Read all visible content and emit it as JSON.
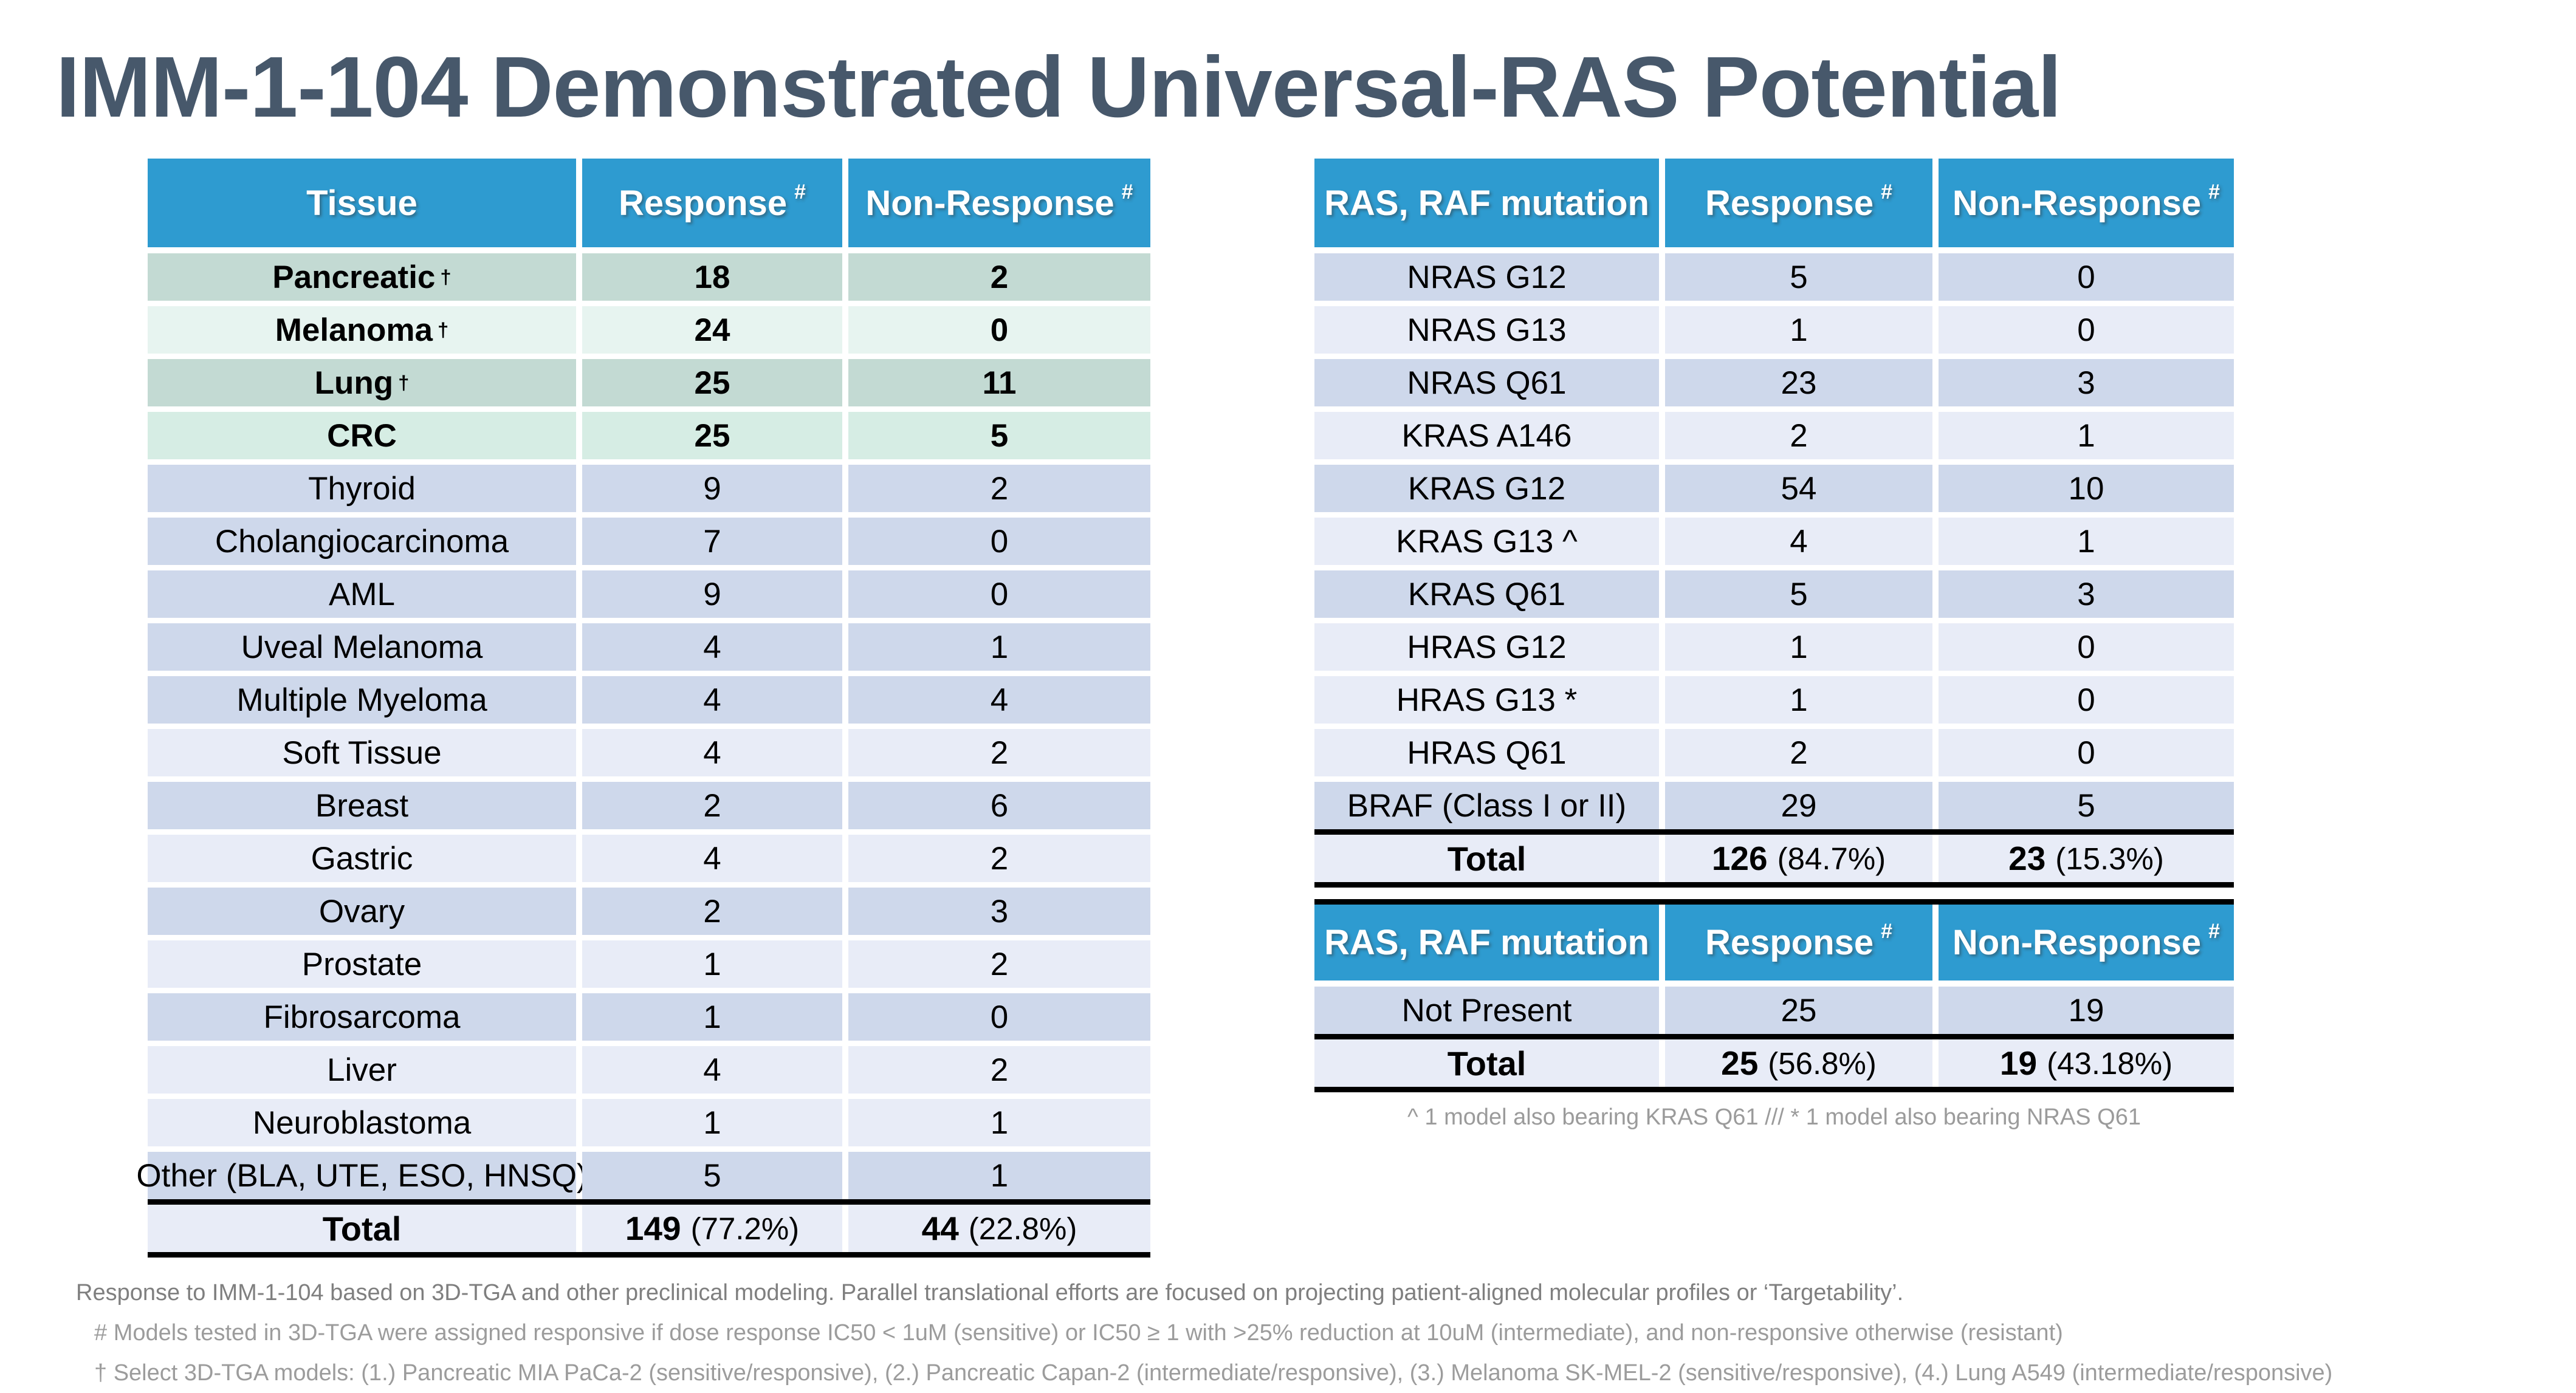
{
  "title": "IMM-1-104 Demonstrated Universal-RAS Potential",
  "colors": {
    "header_blue": "#2E9BD0",
    "title_color": "#47586B",
    "tone_green_dark": "#C3DAD3",
    "tone_green_light": "#E7F4F0",
    "tone_mint": "#D6EDE4",
    "tone_peri": "#CED8EB",
    "tone_light": "#E8ECF7",
    "footnote_gray": "#9B9B9B",
    "note_primary": "#7F7F7F",
    "note_secondary": "#9C9C9C"
  },
  "tables": {
    "tissue": {
      "headers": [
        {
          "label": "Tissue",
          "sup": ""
        },
        {
          "label": "Response",
          "sup": "#"
        },
        {
          "label": "Non-Response",
          "sup": "#"
        }
      ],
      "rows": [
        {
          "label": "Pancreatic",
          "sup": "†",
          "response": "18",
          "non": "2",
          "bold": true,
          "tone": "green-dark"
        },
        {
          "label": "Melanoma",
          "sup": "†",
          "response": "24",
          "non": "0",
          "bold": true,
          "tone": "green-light"
        },
        {
          "label": "Lung",
          "sup": "†",
          "response": "25",
          "non": "11",
          "bold": true,
          "tone": "green-dark"
        },
        {
          "label": "CRC",
          "sup": "",
          "response": "25",
          "non": "5",
          "bold": true,
          "tone": "mint"
        },
        {
          "label": "Thyroid",
          "sup": "",
          "response": "9",
          "non": "2",
          "bold": false,
          "tone": "peri"
        },
        {
          "label": "Cholangiocarcinoma",
          "sup": "",
          "response": "7",
          "non": "0",
          "bold": false,
          "tone": "peri"
        },
        {
          "label": "AML",
          "sup": "",
          "response": "9",
          "non": "0",
          "bold": false,
          "tone": "peri"
        },
        {
          "label": "Uveal Melanoma",
          "sup": "",
          "response": "4",
          "non": "1",
          "bold": false,
          "tone": "peri"
        },
        {
          "label": "Multiple Myeloma",
          "sup": "",
          "response": "4",
          "non": "4",
          "bold": false,
          "tone": "peri"
        },
        {
          "label": "Soft Tissue",
          "sup": "",
          "response": "4",
          "non": "2",
          "bold": false,
          "tone": "light"
        },
        {
          "label": "Breast",
          "sup": "",
          "response": "2",
          "non": "6",
          "bold": false,
          "tone": "peri"
        },
        {
          "label": "Gastric",
          "sup": "",
          "response": "4",
          "non": "2",
          "bold": false,
          "tone": "light"
        },
        {
          "label": "Ovary",
          "sup": "",
          "response": "2",
          "non": "3",
          "bold": false,
          "tone": "peri"
        },
        {
          "label": "Prostate",
          "sup": "",
          "response": "1",
          "non": "2",
          "bold": false,
          "tone": "light"
        },
        {
          "label": "Fibrosarcoma",
          "sup": "",
          "response": "1",
          "non": "0",
          "bold": false,
          "tone": "peri"
        },
        {
          "label": "Liver",
          "sup": "",
          "response": "4",
          "non": "2",
          "bold": false,
          "tone": "light"
        },
        {
          "label": "Neuroblastoma",
          "sup": "",
          "response": "1",
          "non": "1",
          "bold": false,
          "tone": "light"
        },
        {
          "label": "Other (BLA, UTE, ESO, HNSQ)",
          "sup": "",
          "response": "5",
          "non": "1",
          "bold": false,
          "tone": "peri"
        }
      ],
      "total": {
        "label": "Total",
        "response_num": "149",
        "response_pct": "(77.2%)",
        "non_num": "44",
        "non_pct": "(22.8%)"
      }
    },
    "mutations": {
      "headers": [
        {
          "label": "RAS, RAF mutation",
          "sup": ""
        },
        {
          "label": "Response",
          "sup": "#"
        },
        {
          "label": "Non-Response",
          "sup": "#"
        }
      ],
      "rows": [
        {
          "label": "NRAS G12",
          "sup": "",
          "response": "5",
          "non": "0",
          "bold": false,
          "tone": "peri"
        },
        {
          "label": "NRAS G13",
          "sup": "",
          "response": "1",
          "non": "0",
          "bold": false,
          "tone": "light"
        },
        {
          "label": "NRAS Q61",
          "sup": "",
          "response": "23",
          "non": "3",
          "bold": false,
          "tone": "peri"
        },
        {
          "label": "KRAS A146",
          "sup": "",
          "response": "2",
          "non": "1",
          "bold": false,
          "tone": "light"
        },
        {
          "label": "KRAS G12",
          "sup": "",
          "response": "54",
          "non": "10",
          "bold": false,
          "tone": "peri"
        },
        {
          "label": "KRAS G13 ^",
          "sup": "",
          "response": "4",
          "non": "1",
          "bold": false,
          "tone": "light"
        },
        {
          "label": "KRAS Q61",
          "sup": "",
          "response": "5",
          "non": "3",
          "bold": false,
          "tone": "peri"
        },
        {
          "label": "HRAS G12",
          "sup": "",
          "response": "1",
          "non": "0",
          "bold": false,
          "tone": "light"
        },
        {
          "label": "HRAS G13 *",
          "sup": "",
          "response": "1",
          "non": "0",
          "bold": false,
          "tone": "light"
        },
        {
          "label": "HRAS Q61",
          "sup": "",
          "response": "2",
          "non": "0",
          "bold": false,
          "tone": "light"
        },
        {
          "label": "BRAF (Class I or II)",
          "sup": "",
          "response": "29",
          "non": "5",
          "bold": false,
          "tone": "peri"
        }
      ],
      "total": {
        "label": "Total",
        "response_num": "126",
        "response_pct": "(84.7%)",
        "non_num": "23",
        "non_pct": "(15.3%)"
      }
    },
    "mutations_not_present": {
      "headers": [
        {
          "label": "RAS, RAF mutation",
          "sup": ""
        },
        {
          "label": "Response",
          "sup": "#"
        },
        {
          "label": "Non-Response",
          "sup": "#"
        }
      ],
      "rows": [
        {
          "label": "Not Present",
          "sup": "",
          "response": "25",
          "non": "19",
          "bold": false,
          "tone": "peri"
        }
      ],
      "total": {
        "label": "Total",
        "response_num": "25",
        "response_pct": "(56.8%)",
        "non_num": "19",
        "non_pct": "(43.18%)"
      }
    }
  },
  "mutation_footnote": "^ 1 model also bearing KRAS Q61 /// * 1 model also bearing NRAS Q61",
  "footnotes": {
    "bottom": [
      "Response to IMM-1-104 based on 3D-TGA and other preclinical modeling. Parallel translational efforts are focused on projecting patient-aligned molecular profiles or ‘Targetability’.",
      "# Models tested in 3D-TGA were assigned responsive if dose response IC50 < 1uM (sensitive) or IC50 ≥ 1 with >25% reduction at 10uM (intermediate), and non-responsive otherwise (resistant)",
      "† Select 3D-TGA models: (1.) Pancreatic MIA PaCa-2 (sensitive/responsive), (2.) Pancreatic Capan-2 (intermediate/responsive), (3.) Melanoma SK-MEL-2 (sensitive/responsive), (4.) Lung A549 (intermediate/responsive)"
    ]
  }
}
